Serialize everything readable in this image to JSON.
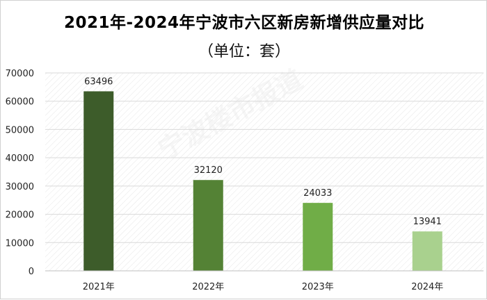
{
  "title": "2021年-2024年宁波市六区新房新增供应量对比",
  "subtitle": "（单位：套）",
  "watermark": "宁波楼市报道",
  "chart_data": {
    "type": "bar",
    "categories": [
      "2021年",
      "2022年",
      "2023年",
      "2024年"
    ],
    "values": [
      63496,
      32120,
      24033,
      13941
    ],
    "data_labels": [
      "63496",
      "32120",
      "24033",
      "13941"
    ],
    "bar_colors": [
      "#3d5c2a",
      "#548235",
      "#70ad47",
      "#a9d18e"
    ],
    "ylim": [
      0,
      70000
    ],
    "yticks": [
      0,
      10000,
      20000,
      30000,
      40000,
      50000,
      60000,
      70000
    ],
    "ytick_labels": [
      "0",
      "10000",
      "20000",
      "30000",
      "40000",
      "50000",
      "60000",
      "70000"
    ],
    "grid": true,
    "legend": "none",
    "xlabel": "",
    "ylabel": ""
  }
}
